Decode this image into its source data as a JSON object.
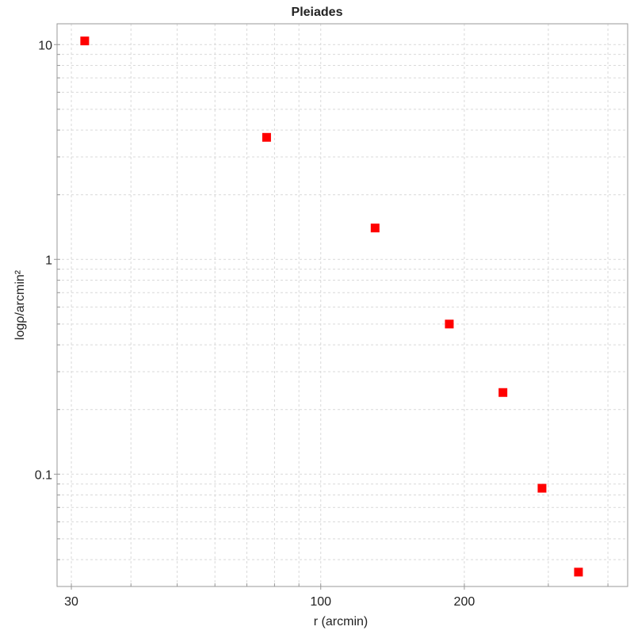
{
  "chart_data": {
    "type": "scatter",
    "title": "Pleiades",
    "xlabel": "r (arcmin)",
    "ylabel": "logρ/arcmin²",
    "x_scale": "log",
    "y_scale": "log",
    "xlim": [
      28,
      440
    ],
    "ylim": [
      0.03,
      12.5
    ],
    "x_ticks": [
      {
        "value": 30,
        "label": "30"
      },
      {
        "value": 100,
        "label": "100"
      },
      {
        "value": 200,
        "label": "200"
      }
    ],
    "y_ticks": [
      {
        "value": 0.1,
        "label": "0.1"
      },
      {
        "value": 1,
        "label": "1"
      },
      {
        "value": 10,
        "label": "10"
      }
    ],
    "grid": true,
    "legend": "none",
    "marker": "square",
    "colors": {
      "marker": "#ff0000",
      "grid": "#d9d9d9",
      "axis": "#999999"
    },
    "series": [
      {
        "points": [
          {
            "x": 32,
            "y": 10.4
          },
          {
            "x": 77,
            "y": 3.7
          },
          {
            "x": 130,
            "y": 1.4
          },
          {
            "x": 186,
            "y": 0.5
          },
          {
            "x": 241,
            "y": 0.24
          },
          {
            "x": 291,
            "y": 0.086
          },
          {
            "x": 347,
            "y": 0.035
          }
        ]
      }
    ]
  }
}
